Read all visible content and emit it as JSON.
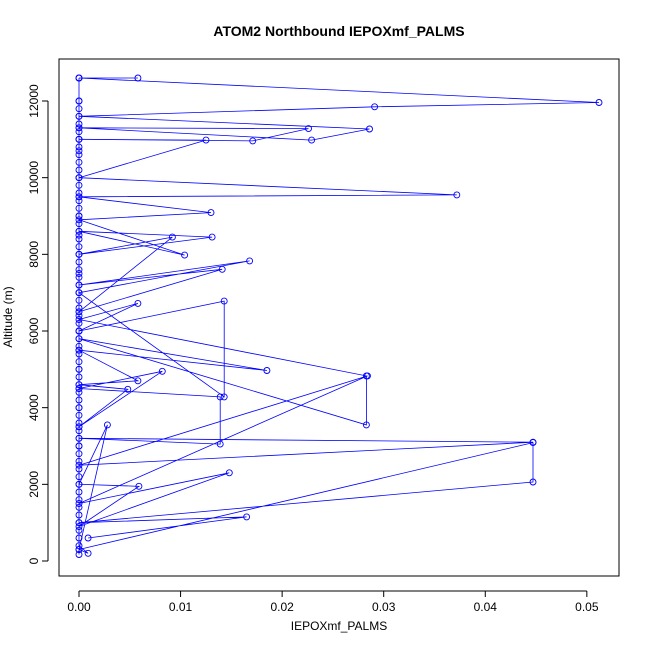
{
  "chart_data": {
    "type": "line",
    "title": "ATOM2 Northbound IEPOXmf_PALMS",
    "xlabel": "IEPOXmf_PALMS",
    "ylabel": "Altitude (m)",
    "xlim": [
      0,
      0.052
    ],
    "ylim": [
      0,
      12600
    ],
    "xticks": [
      0,
      0.01,
      0.02,
      0.03,
      0.04,
      0.05
    ],
    "xtick_labels": [
      "0.00",
      "0.01",
      "0.02",
      "0.03",
      "0.04",
      "0.05"
    ],
    "yticks": [
      0,
      2000,
      4000,
      6000,
      8000,
      10000,
      12000
    ],
    "ytick_labels": [
      "0",
      "2000",
      "4000",
      "6000",
      "8000",
      "10000",
      "12000"
    ],
    "grid": false,
    "marker": "open-circle",
    "color": "#0000ff",
    "series": [
      {
        "x": [
          0.0,
          0.0,
          0.0009,
          0.0,
          0.0,
          0.0,
          0.0,
          0.0,
          0.0,
          0.0,
          0.0,
          0.0,
          0.0,
          0.0,
          0.0,
          0.0,
          0.0,
          0.0,
          0.0,
          0.0,
          0.0,
          0.0,
          0.0,
          0.0,
          0.0,
          0.0,
          0.0,
          0.0,
          0.0,
          0.0,
          0.0,
          0.0,
          0.0,
          0.0,
          0.0,
          0.0,
          0.0,
          0.0,
          0.0,
          0.0,
          0.0,
          0.0,
          0.0,
          0.0,
          0.0,
          0.0,
          0.0,
          0.0,
          0.0,
          0.0,
          0.0,
          0.0,
          0.0,
          0.0,
          0.0,
          0.0,
          0.0,
          0.0,
          0.0,
          0.0,
          0.0,
          0.0,
          0.0,
          0.0,
          0.0,
          0.0,
          0.0,
          0.0,
          0.0,
          0.0,
          0.0,
          0.0,
          0.0,
          0.0,
          0.0,
          0.0,
          0.0,
          0.0,
          0.0,
          0.0,
          0.0,
          0.0,
          0.0
        ],
        "y": [
          170,
          300,
          200,
          400,
          600,
          800,
          1000,
          1200,
          1400,
          1600,
          1800,
          2000,
          2200,
          2400,
          2600,
          2800,
          3000,
          3200,
          3400,
          3600,
          3800,
          4000,
          4200,
          4400,
          4600,
          4800,
          5000,
          5200,
          5400,
          5600,
          5800,
          6000,
          6200,
          6400,
          6600,
          6800,
          7000,
          7200,
          7400,
          7600,
          7800,
          8000,
          8200,
          8400,
          8600,
          8800,
          9000,
          9200,
          9400,
          9600,
          9800,
          10000,
          10200,
          10400,
          10600,
          10800,
          11000,
          11200,
          11400,
          11600,
          11800,
          12000,
          12600,
          12600,
          12000,
          11300,
          11000,
          10700,
          10000,
          9500,
          9000,
          8500,
          8000,
          7500,
          7000,
          6500,
          6000,
          5500,
          5000,
          4500,
          4000,
          3500,
          3000
        ]
      },
      {
        "x": [
          0.0009,
          0.0165,
          0.0,
          0.0447,
          0.0447,
          0.0,
          0.0028,
          0.0,
          0.0059,
          0.0,
          0.0148,
          0.0,
          0.0284,
          0.0,
          0.0447,
          0.0,
          0.0139,
          0.0139,
          0.0,
          0.0082,
          0.0,
          0.0048,
          0.0,
          0.0058,
          0.0,
          0.0185,
          0.0,
          0.0283,
          0.0283,
          0.0,
          0.0058,
          0.0,
          0.0143,
          0.0143,
          0.0,
          0.0168,
          0.0,
          0.0141,
          0.0,
          0.0092,
          0.0,
          0.0131,
          0.0,
          0.0104,
          0.0,
          0.013,
          0.0,
          0.0372,
          0.0,
          0.0125,
          0.0,
          0.0171,
          0.0226,
          0.0,
          0.0229,
          0.0286,
          0.0,
          0.0291,
          0.0512,
          0.0,
          0.0058
        ],
        "y": [
          600,
          1150,
          1000,
          2060,
          3090,
          300,
          3550,
          2000,
          1950,
          900,
          2300,
          1500,
          4830,
          2500,
          3100,
          3200,
          3050,
          4280,
          4500,
          4950,
          3500,
          4480,
          4600,
          4700,
          5500,
          4970,
          5800,
          3550,
          4830,
          6300,
          6720,
          6000,
          6780,
          4280,
          7000,
          7830,
          7200,
          7610,
          6500,
          8450,
          8000,
          8450,
          8600,
          7980,
          8900,
          9090,
          9500,
          9550,
          10000,
          10980,
          11000,
          10960,
          11280,
          11300,
          10980,
          11270,
          11600,
          11850,
          11960,
          12600,
          12600
        ]
      }
    ]
  }
}
